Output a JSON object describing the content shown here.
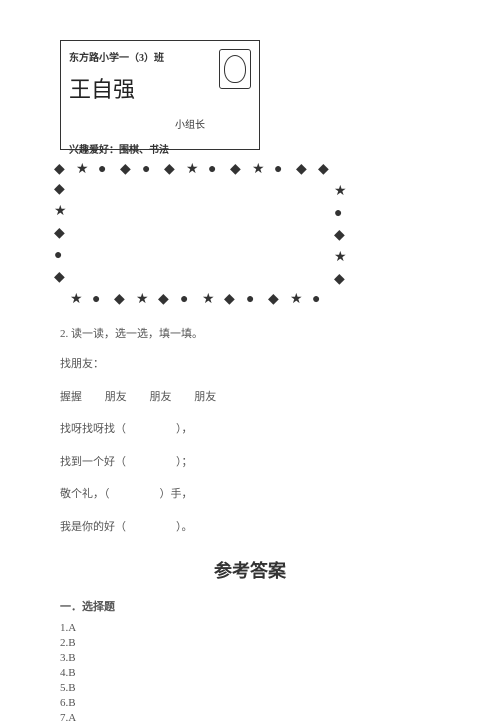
{
  "card": {
    "class_line": "东方路小学一（3）班",
    "name": "王自强",
    "role": "小组长",
    "hobby": "兴趣爱好：围棋、书法"
  },
  "question2": {
    "num": "2.",
    "title": "读一读，选一选，填一填。",
    "subtitle": "找朋友：",
    "words": [
      "握握",
      "朋友",
      "朋友",
      "朋友"
    ],
    "lines": [
      {
        "pre": "找呀找呀找（",
        "post": "），"
      },
      {
        "pre": "找到一个好（",
        "post": "）；"
      },
      {
        "pre": "敬个礼，（",
        "post": "）手，"
      },
      {
        "pre": "我是你的好（",
        "post": "）。"
      }
    ]
  },
  "answers": {
    "title": "参考答案",
    "section": "一．选择题",
    "items": [
      "1.A",
      "2.B",
      "3.B",
      "4.B",
      "5.B",
      "6.B",
      "7.A"
    ]
  },
  "shapes": [
    "◆",
    "★",
    "●",
    "◆",
    "●",
    "◆",
    "★",
    "●",
    "◆",
    "★",
    "●",
    "◆",
    "◆",
    "★",
    "●",
    "◆",
    "★",
    "◆",
    "●",
    "★",
    "◆",
    "●",
    "◆",
    "★",
    "●",
    "◆",
    "★",
    "◆",
    "●",
    "★",
    "◆",
    "●",
    "◆",
    "★"
  ]
}
